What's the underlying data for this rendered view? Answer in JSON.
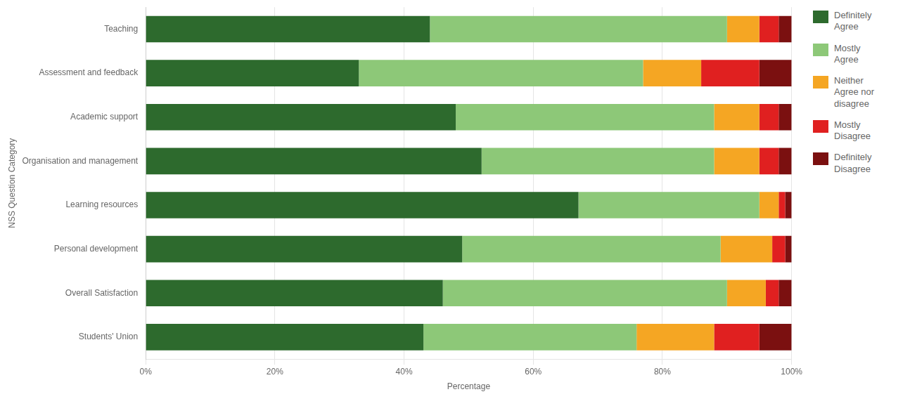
{
  "chart_data": {
    "type": "bar",
    "orientation": "horizontal",
    "stacked": true,
    "xlabel": "Percentage",
    "ylabel": "NSS Question Category",
    "categories": [
      "Teaching",
      "Assessment and feedback",
      "Academic support",
      "Organisation and management",
      "Learning resources",
      "Personal development",
      "Overall Satisfaction",
      "Students' Union"
    ],
    "series": [
      {
        "name": "Definitely\nAgree",
        "color": "#2d6a2d",
        "values": [
          44,
          33,
          48,
          52,
          67,
          49,
          46,
          43
        ]
      },
      {
        "name": "Mostly\nAgree",
        "color": "#8dc878",
        "values": [
          46,
          44,
          40,
          36,
          28,
          40,
          44,
          33
        ]
      },
      {
        "name": "Neither\nAgree nor\ndisagree",
        "color": "#f5a623",
        "values": [
          5,
          9,
          7,
          7,
          3,
          8,
          6,
          12
        ]
      },
      {
        "name": "Mostly\nDisagree",
        "color": "#e02020",
        "values": [
          3,
          9,
          3,
          3,
          1,
          2,
          2,
          7
        ]
      },
      {
        "name": "Definitely\nDisagree",
        "color": "#7b1010",
        "values": [
          2,
          5,
          2,
          2,
          1,
          1,
          2,
          5
        ]
      }
    ],
    "xlim": [
      0,
      100
    ],
    "xticks": [
      {
        "value": 0,
        "label": "0%"
      },
      {
        "value": 20,
        "label": "20%"
      },
      {
        "value": 40,
        "label": "40%"
      },
      {
        "value": 60,
        "label": "60%"
      },
      {
        "value": 80,
        "label": "80%"
      },
      {
        "value": 100,
        "label": "100%"
      }
    ],
    "grid": true,
    "legend": "right"
  }
}
